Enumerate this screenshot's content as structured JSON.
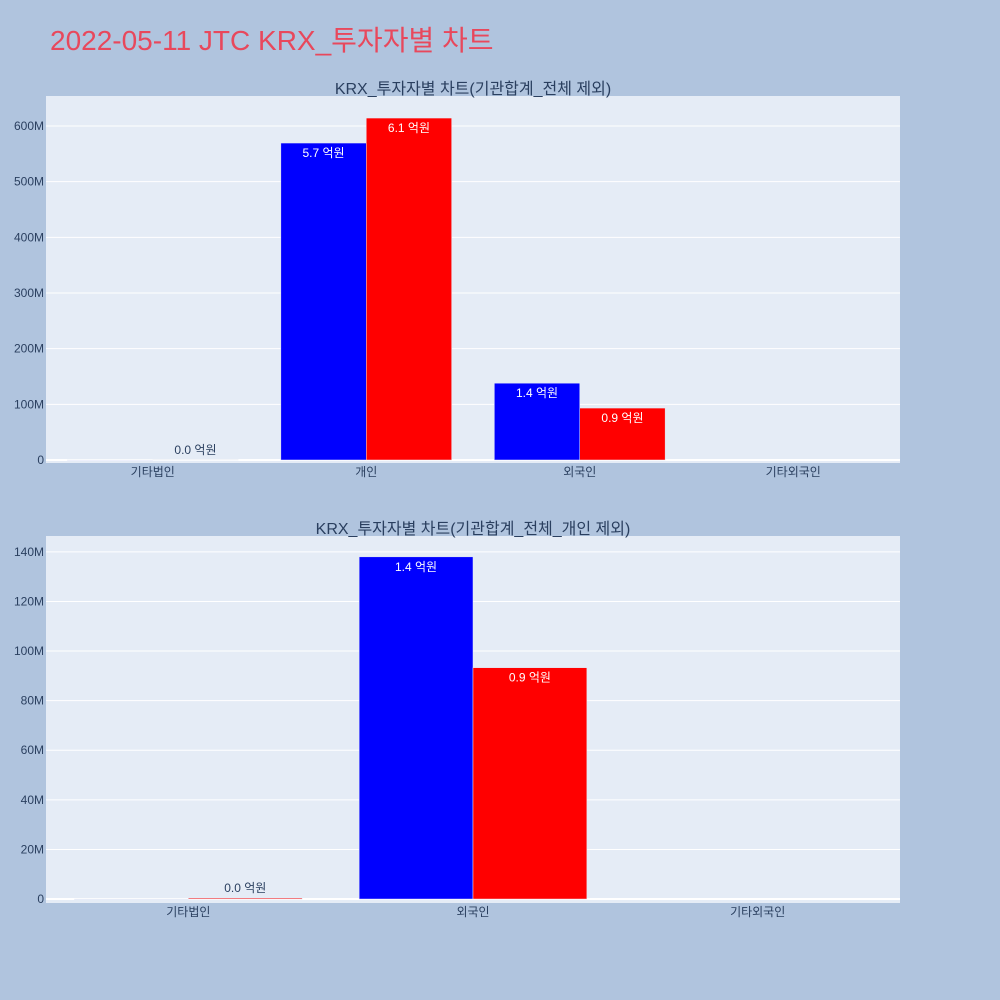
{
  "figure": {
    "title": "2022-05-11 JTC KRX_투자자별 차트"
  },
  "style": {
    "figure_background": "#b0c4de",
    "plot_background": "#e5ecf6",
    "grid_color": "#ffffff",
    "title_color": "#e8485c",
    "text_color": "#2a3f5f",
    "inside_label_color": "#ffffff"
  },
  "chart_data": [
    {
      "type": "bar",
      "barmode": "group",
      "title": "KRX_투자자별 차트(기관합계_전체 제외)",
      "categories": [
        "기타법인",
        "개인",
        "외국인",
        "기타외국인"
      ],
      "series": [
        {
          "color": "#0000ff",
          "values": [
            -200000,
            569400000,
            138000000,
            0
          ],
          "labels": [
            null,
            "5.7 억원",
            "1.4 억원",
            null
          ]
        },
        {
          "color": "#ff0000",
          "values": [
            400000,
            614300000,
            93300000,
            0
          ],
          "labels": [
            "0.0 억원",
            "6.1 억원",
            "0.9 억원",
            null
          ]
        }
      ],
      "yticks": [
        0,
        100000000,
        200000000,
        300000000,
        400000000,
        500000000,
        600000000
      ],
      "ytick_labels": [
        "0",
        "100M",
        "200M",
        "300M",
        "400M",
        "500M",
        "600M"
      ],
      "ylim": [
        -5400000,
        653900000
      ],
      "grid": true,
      "legend": "none"
    },
    {
      "type": "bar",
      "barmode": "group",
      "title": "KRX_투자자별 차트(기관합계_전체_개인 제외)",
      "categories": [
        "기타법인",
        "외국인",
        "기타외국인"
      ],
      "series": [
        {
          "color": "#0000ff",
          "values": [
            -200000,
            138000000,
            0
          ],
          "labels": [
            null,
            "1.4 억원",
            null
          ]
        },
        {
          "color": "#ff0000",
          "values": [
            400000,
            93300000,
            0
          ],
          "labels": [
            "0.0 억원",
            "0.9 억원",
            null
          ]
        }
      ],
      "yticks": [
        0,
        20000000,
        40000000,
        60000000,
        80000000,
        100000000,
        120000000,
        140000000
      ],
      "ytick_labels": [
        "0",
        "20M",
        "40M",
        "60M",
        "80M",
        "100M",
        "120M",
        "140M"
      ],
      "ylim": [
        -1600000,
        146400000
      ],
      "grid": true,
      "legend": "none"
    }
  ]
}
